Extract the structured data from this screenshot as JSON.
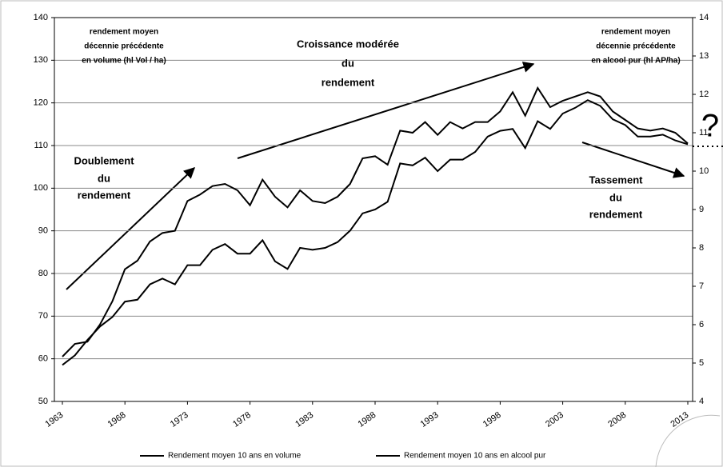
{
  "chart_data": {
    "type": "line",
    "x": [
      1963,
      1964,
      1965,
      1966,
      1967,
      1968,
      1969,
      1970,
      1971,
      1972,
      1973,
      1974,
      1975,
      1976,
      1977,
      1978,
      1979,
      1980,
      1981,
      1982,
      1983,
      1984,
      1985,
      1986,
      1987,
      1988,
      1989,
      1990,
      1991,
      1992,
      1993,
      1994,
      1995,
      1996,
      1997,
      1998,
      1999,
      2000,
      2001,
      2002,
      2003,
      2004,
      2005,
      2006,
      2007,
      2008,
      2009,
      2010,
      2011,
      2012,
      2013
    ],
    "series": [
      {
        "name": "Rendement moyen 10 ans en volume",
        "color": "#000000",
        "values": [
          60.5,
          63.5,
          64,
          68,
          73.5,
          81,
          83,
          87.5,
          89.5,
          90,
          97,
          98.5,
          100.5,
          101,
          99.5,
          96,
          102,
          98,
          95.5,
          99.5,
          97,
          96.5,
          98,
          101,
          107,
          107.5,
          105.5,
          113.5,
          113,
          115.5,
          112.5,
          115.5,
          114,
          115.5,
          115.5,
          118,
          122.5,
          117,
          123.5,
          119,
          120.5,
          121.5,
          122.5,
          121.5,
          118,
          116,
          114,
          113.5,
          114,
          113,
          110.5
        ]
      },
      {
        "name": "Rendement moyen 10 ans en alcool pur",
        "color": "#000000",
        "axis": "y2",
        "values": [
          4.95,
          5.2,
          5.6,
          5.95,
          6.2,
          6.6,
          6.65,
          7.05,
          7.2,
          7.05,
          7.55,
          7.55,
          7.95,
          8.1,
          7.85,
          7.85,
          8.2,
          7.65,
          7.45,
          8.0,
          7.95,
          8.0,
          8.15,
          8.45,
          8.9,
          9.0,
          9.2,
          10.2,
          10.15,
          10.35,
          10.0,
          10.3,
          10.3,
          10.5,
          10.9,
          11.05,
          11.1,
          10.6,
          11.3,
          11.1,
          11.5,
          11.65,
          11.85,
          11.7,
          11.35,
          11.2,
          10.9,
          10.9,
          10.95,
          10.8,
          10.7
        ]
      }
    ],
    "xlim": [
      1963,
      2013
    ],
    "xticks": [
      1963,
      1968,
      1973,
      1978,
      1983,
      1988,
      1993,
      1998,
      2003,
      2008,
      2013
    ],
    "ylim": [
      50,
      140
    ],
    "yticks": [
      50,
      60,
      70,
      80,
      90,
      100,
      110,
      120,
      130,
      140
    ],
    "y2lim": [
      4,
      14
    ],
    "y2ticks": [
      4,
      5,
      6,
      7,
      8,
      9,
      10,
      11,
      12,
      13,
      14
    ],
    "grid": true,
    "annotations": [
      [
        "rendement moyen",
        "décennie précédente",
        "en volume (hl Vol / ha)"
      ],
      [
        "Croissance modérée",
        "du",
        "rendement"
      ],
      [
        "rendement moyen",
        "décennie précédente",
        "en alcool pur (hl AP/ha)"
      ],
      [
        "Doublement",
        "du",
        "rendement"
      ],
      [
        "Tassement",
        "du",
        "rendement"
      ],
      [
        "?"
      ]
    ]
  }
}
